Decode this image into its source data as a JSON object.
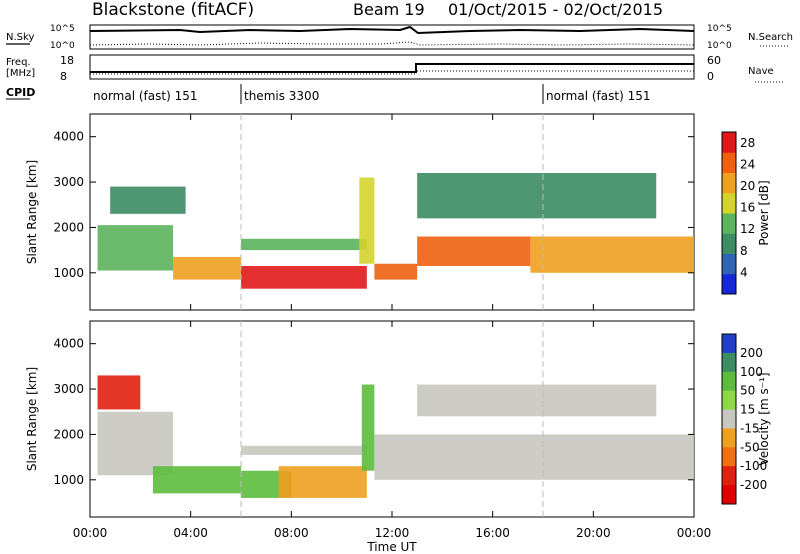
{
  "header": {
    "radar": "Blackstone (fitACF)",
    "beam": "Beam 19",
    "dates": "01/Oct/2015 - 02/Oct/2015"
  },
  "top_panels": {
    "nsky_label": "N.Sky",
    "nsearch_label": "N.Search",
    "noise_ticks": [
      "10^5",
      "10^0"
    ],
    "freq_label": "Freq.",
    "freq_unit": "[MHz]",
    "freq_ticks": [
      "18",
      "8"
    ],
    "nave_label": "Nave",
    "nave_ticks": [
      "60",
      "0"
    ],
    "cpid_label": "CPID",
    "cpid_segments": [
      {
        "label": "normal (fast) 151",
        "start_hour": 0
      },
      {
        "label": "themis 3300",
        "start_hour": 6
      },
      {
        "label": "normal (fast) 151",
        "start_hour": 18
      }
    ]
  },
  "chart_data": [
    {
      "type": "heatmap",
      "title": "",
      "xlabel": "Time UT",
      "ylabel": "Slant Range [km]",
      "x_ticks": [
        "00:00",
        "04:00",
        "08:00",
        "12:00",
        "16:00",
        "20:00",
        "00:00"
      ],
      "x_range_hours": [
        0,
        24
      ],
      "y_ticks": [
        1000,
        2000,
        3000,
        4000
      ],
      "ylim": [
        180,
        4500
      ],
      "colorbar_label": "Power [dB]",
      "colorbar_ticks": [
        4,
        8,
        12,
        16,
        20,
        24,
        28
      ],
      "colorbar_range": [
        0,
        30
      ],
      "colors": [
        "#1428d8",
        "#2f64b4",
        "#3c8c64",
        "#5cb45c",
        "#d4d42c",
        "#f0a020",
        "#f06010",
        "#e01818"
      ],
      "echo_bands": [
        {
          "t0": 0.3,
          "t1": 3.3,
          "r0": 1050,
          "r1": 2050,
          "value": 14
        },
        {
          "t0": 0.8,
          "t1": 3.8,
          "r0": 2300,
          "r1": 2900,
          "value": 10
        },
        {
          "t0": 3.3,
          "t1": 6.0,
          "r0": 850,
          "r1": 1350,
          "value": 20
        },
        {
          "t0": 6.0,
          "t1": 11.0,
          "r0": 650,
          "r1": 1150,
          "value": 28
        },
        {
          "t0": 6.0,
          "t1": 11.0,
          "r0": 1500,
          "r1": 1750,
          "value": 12
        },
        {
          "t0": 10.7,
          "t1": 11.3,
          "r0": 1200,
          "r1": 3100,
          "value": 18
        },
        {
          "t0": 11.3,
          "t1": 13.0,
          "r0": 850,
          "r1": 1200,
          "value": 26
        },
        {
          "t0": 13.0,
          "t1": 17.5,
          "r0": 1150,
          "r1": 1800,
          "value": 24
        },
        {
          "t0": 17.5,
          "t1": 24.0,
          "r0": 1000,
          "r1": 1800,
          "value": 22
        },
        {
          "t0": 13.0,
          "t1": 22.5,
          "r0": 2200,
          "r1": 3200,
          "value": 8
        }
      ]
    },
    {
      "type": "heatmap",
      "title": "",
      "xlabel": "Time UT",
      "ylabel": "Slant Range [km]",
      "x_ticks": [
        "00:00",
        "04:00",
        "08:00",
        "12:00",
        "16:00",
        "20:00",
        "00:00"
      ],
      "x_range_hours": [
        0,
        24
      ],
      "y_ticks": [
        1000,
        2000,
        3000,
        4000
      ],
      "ylim": [
        180,
        4500
      ],
      "colorbar_label": "Velocity [m s⁻¹]",
      "colorbar_ticks": [
        200,
        100,
        50,
        15,
        -15,
        -50,
        -100,
        -200
      ],
      "colors": [
        "#2040c8",
        "#3c8c64",
        "#5cbc3c",
        "#8cd848",
        "#c8c8c0",
        "#f0a020",
        "#f07010",
        "#e02010",
        "#e00000"
      ],
      "echo_bands": [
        {
          "t0": 0.3,
          "t1": 2.0,
          "r0": 2550,
          "r1": 3300,
          "value": -200
        },
        {
          "t0": 0.3,
          "t1": 3.3,
          "r0": 1100,
          "r1": 2500,
          "value": 0
        },
        {
          "t0": 2.5,
          "t1": 6.0,
          "r0": 700,
          "r1": 1300,
          "value": 50
        },
        {
          "t0": 6.0,
          "t1": 8.0,
          "r0": 600,
          "r1": 1200,
          "value": 50
        },
        {
          "t0": 7.5,
          "t1": 11.0,
          "r0": 600,
          "r1": 1300,
          "value": -50
        },
        {
          "t0": 6.0,
          "t1": 11.0,
          "r0": 1550,
          "r1": 1750,
          "value": 0
        },
        {
          "t0": 10.8,
          "t1": 11.3,
          "r0": 1200,
          "r1": 3100,
          "value": 50
        },
        {
          "t0": 11.3,
          "t1": 24.0,
          "r0": 1000,
          "r1": 2000,
          "value": 0
        },
        {
          "t0": 13.0,
          "t1": 22.5,
          "r0": 2400,
          "r1": 3100,
          "value": 0
        }
      ]
    }
  ]
}
